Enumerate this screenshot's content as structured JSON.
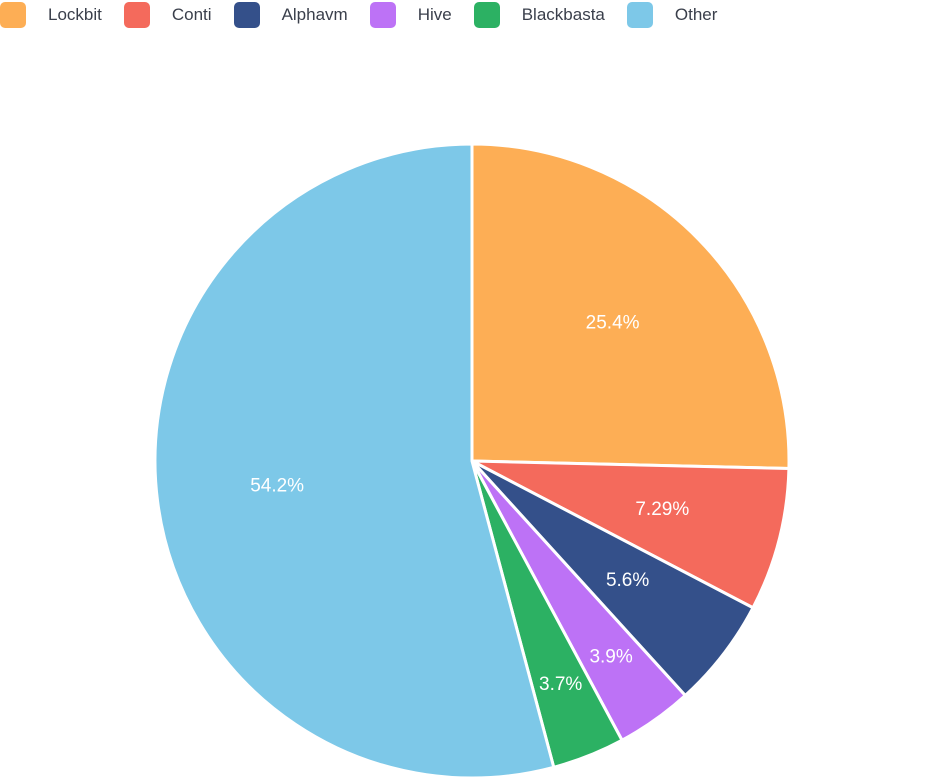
{
  "chart_data": {
    "type": "pie",
    "categories": [
      "Lockbit",
      "Conti",
      "Alphavm",
      "Hive",
      "Blackbasta",
      "Other"
    ],
    "values": [
      25.4,
      7.29,
      5.6,
      3.9,
      3.7,
      54.2
    ],
    "value_labels": [
      "25.4%",
      "7.29%",
      "5.6%",
      "3.9%",
      "3.7%",
      "54.2%"
    ],
    "colors": [
      "#FDAE55",
      "#F46A5C",
      "#34508A",
      "#BD72F6",
      "#2CB163",
      "#7DC8E8"
    ],
    "legend_position": "top-left",
    "start_angle": "top, clockwise"
  }
}
